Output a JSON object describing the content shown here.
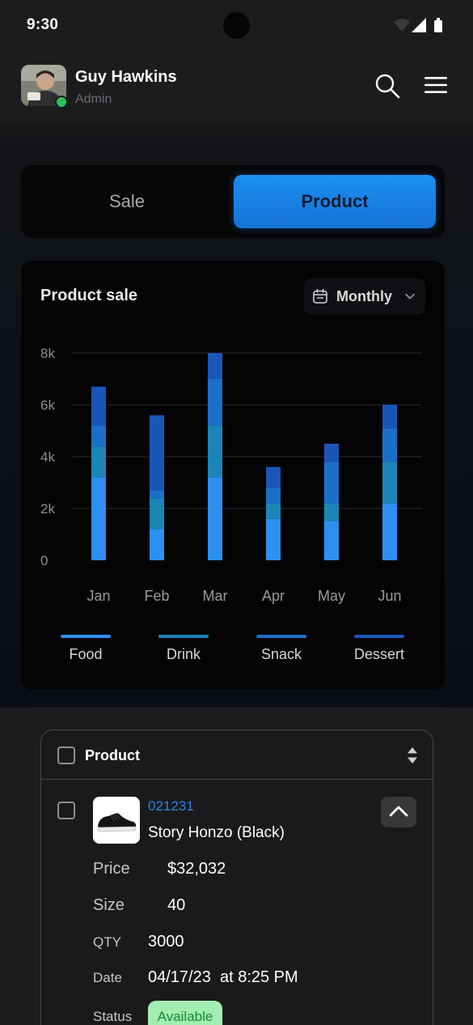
{
  "status_bar": {
    "time": "9:30"
  },
  "header": {
    "user_name": "Guy Hawkins",
    "user_role": "Admin",
    "online_color": "#2ac458",
    "icons": [
      "search-icon",
      "menu-icon"
    ]
  },
  "tabs": [
    {
      "label": "Sale",
      "active": false
    },
    {
      "label": "Product",
      "active": true
    }
  ],
  "chart_card": {
    "title": "Product sale",
    "period": "Monthly"
  },
  "chart_data": {
    "type": "bar",
    "stacked": true,
    "title": "Product sale",
    "categories": [
      "Jan",
      "Feb",
      "Mar",
      "Apr",
      "May",
      "Jun"
    ],
    "y_ticks": [
      "0",
      "2k",
      "4k",
      "6k",
      "8k"
    ],
    "ylim": [
      0,
      8000
    ],
    "grid": true,
    "legend_position": "bottom",
    "series": [
      {
        "name": "Food",
        "color": "#2d8ff2",
        "values": [
          3200,
          1200,
          3200,
          1600,
          1500,
          2200
        ]
      },
      {
        "name": "Drink",
        "color": "#1a86b8",
        "values": [
          1200,
          1200,
          2000,
          600,
          700,
          1600
        ]
      },
      {
        "name": "Snack",
        "color": "#1c6fc8",
        "values": [
          800,
          300,
          1800,
          600,
          1600,
          1300
        ]
      },
      {
        "name": "Dessert",
        "color": "#1a56b8",
        "values": [
          1500,
          2900,
          1000,
          800,
          700,
          900
        ]
      }
    ]
  },
  "table": {
    "header_label": "Product",
    "row": {
      "code": "021231",
      "name": "Story Honzo (Black)",
      "details": {
        "price_label": "Price",
        "price_value": "$32,032",
        "size_label": "Size",
        "size_value": "40",
        "qty_label": "QTY",
        "qty_value": "3000",
        "date_label": "Date",
        "date_value": "04/17/23  at 8:25 PM",
        "status_label": "Status",
        "status_value": "Available"
      }
    }
  }
}
